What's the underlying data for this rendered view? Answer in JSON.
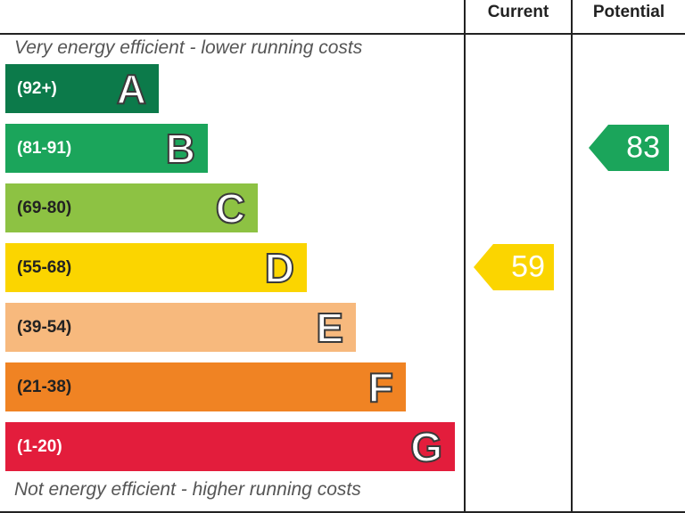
{
  "columns": {
    "current": "Current",
    "potential": "Potential"
  },
  "top_caption": "Very energy efficient - lower running costs",
  "bottom_caption": "Not energy efficient - higher running costs",
  "chart_data": {
    "type": "bar",
    "bands": [
      {
        "letter": "A",
        "range": "(92+)",
        "color": "#0c7a4a",
        "text_color": "#ffffff"
      },
      {
        "letter": "B",
        "range": "(81-91)",
        "color": "#1ba55b",
        "text_color": "#ffffff"
      },
      {
        "letter": "C",
        "range": "(69-80)",
        "color": "#8dc243",
        "text_color": "#222222"
      },
      {
        "letter": "D",
        "range": "(55-68)",
        "color": "#fbd500",
        "text_color": "#222222"
      },
      {
        "letter": "E",
        "range": "(39-54)",
        "color": "#f7b97d",
        "text_color": "#222222"
      },
      {
        "letter": "F",
        "range": "(21-38)",
        "color": "#f08323",
        "text_color": "#222222"
      },
      {
        "letter": "G",
        "range": "(1-20)",
        "color": "#e31d3c",
        "text_color": "#ffffff"
      }
    ],
    "current": {
      "value": 59,
      "band": "D",
      "color": "#fbd500"
    },
    "potential": {
      "value": 83,
      "band": "B",
      "color": "#1ba55b"
    }
  }
}
